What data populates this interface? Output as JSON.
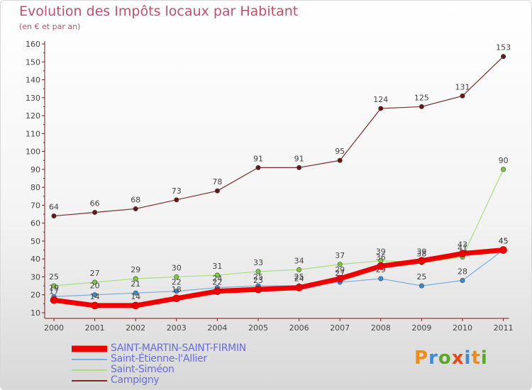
{
  "title": "Evolution des Impôts locaux par Habitant",
  "subtitle": "(en € et par an)",
  "logo": {
    "letters": [
      "P",
      "r",
      "o",
      "x",
      "i",
      "t",
      "i"
    ],
    "colors": [
      "#f08a18",
      "#3d8bd8",
      "#5aa82a",
      "#e64a17",
      "#3d8bd8",
      "#f08a18",
      "#5aa82a"
    ]
  },
  "chart_data": {
    "type": "line",
    "title": "Evolution des Impôts locaux par Habitant",
    "subtitle": "(en € et par an)",
    "x": [
      "2000",
      "2001",
      "2002",
      "2003",
      "2004",
      "2005",
      "2006",
      "2007",
      "2008",
      "2009",
      "2010",
      "2011"
    ],
    "ylim": [
      10,
      160
    ],
    "yticks": [
      "10",
      "20",
      "30",
      "40",
      "50",
      "60",
      "70",
      "80",
      "90",
      "100",
      "110",
      "120",
      "130",
      "140",
      "150",
      "160"
    ],
    "grid": false,
    "legend_position": "bottom-left",
    "series": [
      {
        "name": "Campigny",
        "color": "#7a2a2a",
        "dot": "#6a1515",
        "width": 1.2,
        "values": [
          64,
          66,
          68,
          73,
          78,
          91,
          91,
          95,
          124,
          125,
          131,
          153
        ],
        "labels": [
          "64",
          "66",
          "68",
          "73",
          "78",
          "91",
          "91",
          "95",
          "124",
          "125",
          "131",
          "153"
        ]
      },
      {
        "name": "Saint-Siméon",
        "color": "#a8e07a",
        "dot": "#7acc3c",
        "width": 1.2,
        "values": [
          25,
          27,
          29,
          30,
          31,
          33,
          34,
          37,
          39,
          38,
          41,
          90
        ],
        "labels": [
          "25",
          "27",
          "29",
          "30",
          "31",
          "33",
          "34",
          "37",
          "39",
          "38",
          "41",
          "90"
        ]
      },
      {
        "name": "Saint-Étienne-l'Allier",
        "color": "#7aaede",
        "dot": "#3a8ad0",
        "width": 1.2,
        "values": [
          19,
          20,
          21,
          22,
          24,
          25,
          25,
          27,
          29,
          25,
          28,
          45
        ],
        "labels": [
          "19",
          "20",
          "21",
          "22",
          "24",
          "25",
          "25",
          "27",
          "29",
          "25",
          "28",
          "45"
        ]
      },
      {
        "name": "SAINT-MARTIN-SAINT-FIRMIN",
        "color": "#ee0000",
        "dot": "#ee0000",
        "width": 7,
        "values": [
          17,
          14,
          14,
          18,
          22,
          23,
          24,
          29,
          36,
          39,
          43,
          45
        ],
        "labels": [
          "17",
          "14",
          "14",
          "18",
          "22",
          "23",
          "24",
          "29",
          "36",
          "39",
          "43",
          "45"
        ]
      }
    ],
    "legend": [
      "SAINT-MARTIN-SAINT-FIRMIN",
      "Saint-Étienne-l'Allier",
      "Saint-Siméon",
      "Campigny"
    ]
  }
}
